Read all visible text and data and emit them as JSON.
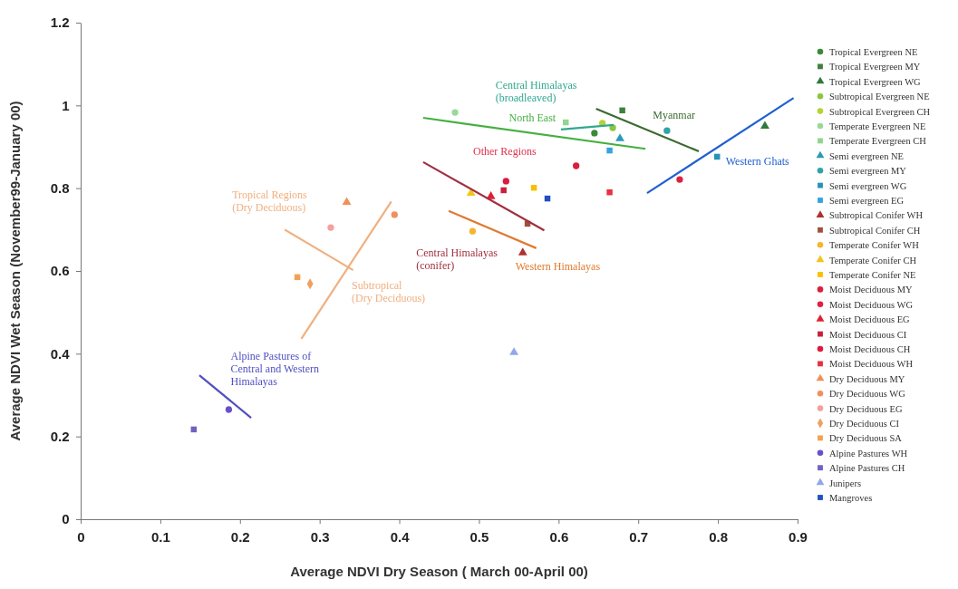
{
  "chart_data": {
    "type": "scatter",
    "xlabel": "Average NDVI Dry Season ( March 00-April 00)",
    "ylabel": "Average NDVI Wet Season (November99-January 00)",
    "xlim": [
      0,
      0.9
    ],
    "ylim": [
      0,
      1.2
    ],
    "xticks": [
      0,
      0.1,
      0.2,
      0.3,
      0.4,
      0.5,
      0.6,
      0.7,
      0.8,
      0.9
    ],
    "yticks": [
      0,
      0.2,
      0.4,
      0.6,
      0.8,
      1,
      1.2
    ],
    "grid": false,
    "legend": "right",
    "series": [
      {
        "name": "Tropical Evergreen NE",
        "color": "#3a8a3a",
        "marker": "circle",
        "x": [
          0.645
        ],
        "values": [
          0.933
        ]
      },
      {
        "name": "Tropical Evergreen MY",
        "color": "#3f7f3f",
        "marker": "square",
        "x": [
          0.68
        ],
        "values": [
          0.988
        ]
      },
      {
        "name": "Tropical Evergreen WG",
        "color": "#2f7a3a",
        "marker": "triangle",
        "x": [
          0.859
        ],
        "values": [
          0.95
        ]
      },
      {
        "name": "Subtropical Evergreen NE",
        "color": "#8cc63f",
        "marker": "circle",
        "x": [
          0.668
        ],
        "values": [
          0.946
        ]
      },
      {
        "name": "Subtropical Evergreen CH",
        "color": "#b5d334",
        "marker": "circle",
        "x": [
          0.655
        ],
        "values": [
          0.957
        ]
      },
      {
        "name": "Temperate Evergreen NE",
        "color": "#9ad89a",
        "marker": "circle",
        "x": [
          0.47
        ],
        "values": [
          0.983
        ]
      },
      {
        "name": "Temperate Evergreen CH",
        "color": "#8fd68f",
        "marker": "square",
        "x": [
          0.609
        ],
        "values": [
          0.959
        ]
      },
      {
        "name": "Semi evergreen NE",
        "color": "#2a9ab5",
        "marker": "triangle",
        "x": [
          0.677
        ],
        "values": [
          0.92
        ]
      },
      {
        "name": "Semi evergreen MY",
        "color": "#2fa3a8",
        "marker": "circle",
        "x": [
          0.736
        ],
        "values": [
          0.939
        ]
      },
      {
        "name": "Semi evergreen WG",
        "color": "#2592b8",
        "marker": "square",
        "x": [
          0.799
        ],
        "values": [
          0.876
        ]
      },
      {
        "name": "Semi evergreen EG",
        "color": "#34a3e0",
        "marker": "square",
        "x": [
          0.664
        ],
        "values": [
          0.891
        ]
      },
      {
        "name": "Subtropical Conifer WH",
        "color": "#b03030",
        "marker": "triangle",
        "x": [
          0.555
        ],
        "values": [
          0.644
        ]
      },
      {
        "name": "Subtropical Conifer CH",
        "color": "#a0503a",
        "marker": "square",
        "x": [
          0.561
        ],
        "values": [
          0.714
        ]
      },
      {
        "name": "Temperate Conifer WH",
        "color": "#f5b530",
        "marker": "circle",
        "x": [
          0.492
        ],
        "values": [
          0.696
        ]
      },
      {
        "name": "Temperate Conifer CH",
        "color": "#f2c41a",
        "marker": "triangle",
        "x": [
          0.49
        ],
        "values": [
          0.788
        ]
      },
      {
        "name": "Temperate Conifer NE",
        "color": "#f8c000",
        "marker": "square",
        "x": [
          0.569
        ],
        "values": [
          0.801
        ]
      },
      {
        "name": "Moist Deciduous MY",
        "color": "#d8203a",
        "marker": "circle",
        "x": [
          0.622
        ],
        "values": [
          0.854
        ]
      },
      {
        "name": "Moist Deciduous WG",
        "color": "#e02040",
        "marker": "circle",
        "x": [
          0.752
        ],
        "values": [
          0.821
        ]
      },
      {
        "name": "Moist Deciduous EG",
        "color": "#e02030",
        "marker": "triangle",
        "x": [
          0.515
        ],
        "values": [
          0.78
        ]
      },
      {
        "name": "Moist Deciduous CI",
        "color": "#c8203a",
        "marker": "square",
        "x": [
          0.531
        ],
        "values": [
          0.795
        ]
      },
      {
        "name": "Moist Deciduous CH",
        "color": "#e01840",
        "marker": "circle",
        "x": [
          0.534
        ],
        "values": [
          0.817
        ]
      },
      {
        "name": "Moist Deciduous WH",
        "color": "#e83040",
        "marker": "square",
        "x": [
          0.664
        ],
        "values": [
          0.79
        ]
      },
      {
        "name": "Dry Deciduous MY",
        "color": "#f0905a",
        "marker": "triangle",
        "x": [
          0.334
        ],
        "values": [
          0.766
        ]
      },
      {
        "name": "Dry Deciduous WG",
        "color": "#f09060",
        "marker": "circle",
        "x": [
          0.394
        ],
        "values": [
          0.736
        ]
      },
      {
        "name": "Dry Deciduous EG",
        "color": "#f4a0a0",
        "marker": "circle",
        "x": [
          0.314
        ],
        "values": [
          0.705
        ]
      },
      {
        "name": "Dry Deciduous CI",
        "color": "#f0a060",
        "marker": "diamond",
        "x": [
          0.288
        ],
        "values": [
          0.569
        ]
      },
      {
        "name": "Dry Deciduous SA",
        "color": "#f5a050",
        "marker": "square",
        "x": [
          0.272
        ],
        "values": [
          0.585
        ]
      },
      {
        "name": "Alpine Pastures WH",
        "color": "#6a50c8",
        "marker": "circle",
        "x": [
          0.186
        ],
        "values": [
          0.265
        ]
      },
      {
        "name": "Alpine Pastures CH",
        "color": "#7060c0",
        "marker": "square",
        "x": [
          0.142
        ],
        "values": [
          0.217
        ]
      },
      {
        "name": "Junipers",
        "color": "#90a8e8",
        "marker": "triangle",
        "x": [
          0.544
        ],
        "values": [
          0.403
        ]
      },
      {
        "name": "Mangroves",
        "color": "#2050c0",
        "marker": "square",
        "x": [
          0.586
        ],
        "values": [
          0.775
        ]
      },
      {
        "type": "line",
        "name": "North East",
        "color": "#44b040",
        "marker": "none",
        "x": [
          0.43,
          0.709
        ],
        "values": [
          0.97,
          0.895
        ]
      },
      {
        "type": "line",
        "name": "Central Himalayas (broadleaved)",
        "color": "#30a890",
        "marker": "none",
        "x": [
          0.603,
          0.669
        ],
        "values": [
          0.942,
          0.953
        ]
      },
      {
        "type": "line",
        "name": "Myanmar",
        "color": "#3a6a30",
        "marker": "none",
        "x": [
          0.647,
          0.776
        ],
        "values": [
          0.992,
          0.889
        ]
      },
      {
        "type": "line",
        "name": "Western Ghats",
        "color": "#2060d0",
        "marker": "none",
        "x": [
          0.711,
          0.895
        ],
        "values": [
          0.788,
          1.018
        ]
      },
      {
        "type": "line",
        "name": "Central Himalayas (conifer)",
        "color": "#a03040",
        "marker": "none",
        "x": [
          0.43,
          0.582
        ],
        "values": [
          0.863,
          0.698
        ]
      },
      {
        "type": "line",
        "name": "Western Himalayas",
        "color": "#e07a30",
        "marker": "none",
        "x": [
          0.462,
          0.572
        ],
        "values": [
          0.745,
          0.655
        ]
      },
      {
        "type": "line",
        "name": "Tropical Regions (Dry Deciduous)",
        "color": "#f0b080",
        "marker": "none",
        "x": [
          0.256,
          0.342
        ],
        "values": [
          0.7,
          0.602
        ]
      },
      {
        "type": "line",
        "name": "Subtropical (Dry Deciduous)",
        "color": "#f0b080",
        "marker": "none",
        "x": [
          0.277,
          0.39
        ],
        "values": [
          0.436,
          0.768
        ]
      },
      {
        "type": "line",
        "name": "Alpine Pastures of Central and Western Himalayas",
        "color": "#5050c0",
        "marker": "none",
        "x": [
          0.149,
          0.214
        ],
        "values": [
          0.348,
          0.245
        ]
      }
    ],
    "annotations": [
      "Other Regions"
    ]
  }
}
